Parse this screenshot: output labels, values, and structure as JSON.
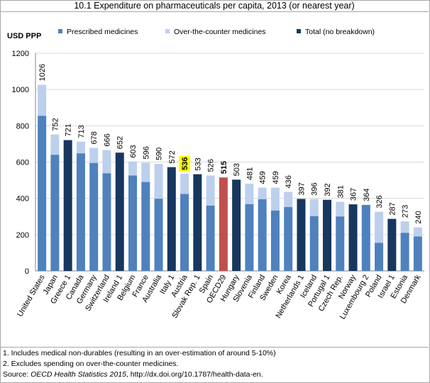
{
  "title": "10.1 Expenditure on pharmaceuticals per capita, 2013 (or nearest year)",
  "notes": {
    "note1": "1. Includes medical non-durables (resulting in an over-estimation of around 5-10%)",
    "note2": "2. Excludes spending on over-the-counter medicines.",
    "source_prefix": "Source: ",
    "source_title": "OECD Health Statistics 2015",
    "source_suffix": ", http://dx.doi.org/10.1787/health-data-en."
  },
  "colors": {
    "prescribed": "#4f81bd",
    "otc": "#bcd0ee",
    "total": "#17375e",
    "oecd": "#c0504d",
    "highlight_box": "#ffff00",
    "grid": "#d9d9d9"
  },
  "chart_data": {
    "type": "bar",
    "stacked": true,
    "ylabel": "USD PPP",
    "ylim": [
      0,
      1200
    ],
    "yticks": [
      0,
      200,
      400,
      600,
      800,
      1000,
      1200
    ],
    "grid": true,
    "legend": [
      "Prescribed medicines",
      "Over-the-counter medicines",
      "Total (no breakdown)"
    ],
    "legend_position": "top",
    "highlight_category": "Austria",
    "categories": [
      "United States",
      "Japan",
      "Greece 1",
      "Canada",
      "Germany",
      "Switzerland",
      "Ireland 1",
      "Belgium",
      "France",
      "Australia",
      "Italy 1",
      "Austria",
      "Slovak Rep. 1",
      "Spain",
      "OECD29",
      "Hungary",
      "Slovenia",
      "Finland",
      "Sweden",
      "Korea",
      "Netherlands 1",
      "Iceland",
      "Portugal 1",
      "Czech Rep.",
      "Norway",
      "Luxembourg 2",
      "Poland",
      "Israel 1",
      "Estonia",
      "Denmark"
    ],
    "totals": [
      1026,
      752,
      721,
      713,
      678,
      666,
      652,
      603,
      596,
      590,
      572,
      536,
      533,
      526,
      515,
      503,
      481,
      459,
      459,
      436,
      397,
      396,
      392,
      381,
      367,
      364,
      326,
      287,
      273,
      240
    ],
    "kinds": [
      "split",
      "split",
      "total",
      "split",
      "split",
      "split",
      "total",
      "split",
      "split",
      "split",
      "total",
      "split",
      "total",
      "split",
      "oecd",
      "total",
      "split",
      "split",
      "split",
      "split",
      "total",
      "split",
      "total",
      "split",
      "total",
      "split",
      "split",
      "total",
      "split",
      "split"
    ],
    "prescribed": [
      855,
      640,
      null,
      648,
      595,
      538,
      null,
      526,
      490,
      398,
      null,
      424,
      null,
      360,
      null,
      null,
      368,
      395,
      333,
      352,
      null,
      302,
      null,
      300,
      null,
      364,
      155,
      null,
      210,
      190
    ]
  }
}
